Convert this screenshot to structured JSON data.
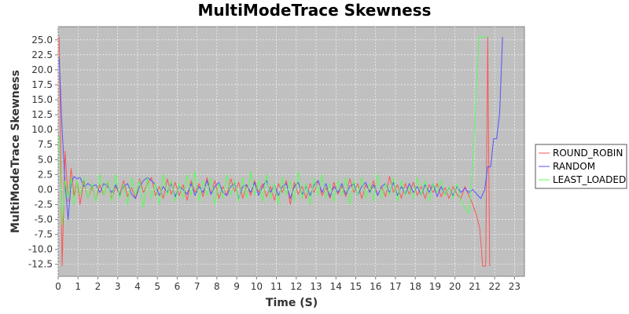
{
  "chart_data": {
    "type": "line",
    "title": "MultiModeTrace Skewness",
    "xlabel": "Time (S)",
    "ylabel": "MultiModeTrace Skewness",
    "xlim": [
      0,
      23.5
    ],
    "ylim": [
      -14.5,
      27.2
    ],
    "x_ticks": [
      0,
      1,
      2,
      3,
      4,
      5,
      6,
      7,
      8,
      9,
      10,
      11,
      12,
      13,
      14,
      15,
      16,
      17,
      18,
      19,
      20,
      21,
      22,
      23
    ],
    "y_ticks": [
      -12.5,
      -10.0,
      -7.5,
      -5.0,
      -2.5,
      0.0,
      2.5,
      5.0,
      7.5,
      10.0,
      12.5,
      15.0,
      17.5,
      20.0,
      22.5,
      25.0
    ],
    "grid": true,
    "legend_position": "right",
    "plot_background": "#c0c0c0",
    "series": [
      {
        "name": "ROUND_ROBIN",
        "color": "#ff5555",
        "x": [
          0.05,
          0.2,
          0.35,
          0.5,
          0.65,
          0.8,
          0.95,
          1.1,
          1.3,
          1.5,
          1.7,
          1.9,
          2.1,
          2.3,
          2.5,
          2.7,
          2.9,
          3.1,
          3.3,
          3.5,
          3.7,
          3.9,
          4.1,
          4.3,
          4.5,
          4.7,
          4.9,
          5.1,
          5.3,
          5.5,
          5.7,
          5.9,
          6.1,
          6.3,
          6.5,
          6.7,
          6.9,
          7.1,
          7.3,
          7.5,
          7.7,
          7.9,
          8.1,
          8.3,
          8.5,
          8.7,
          8.9,
          9.1,
          9.3,
          9.5,
          9.7,
          9.9,
          10.1,
          10.3,
          10.5,
          10.7,
          10.9,
          11.1,
          11.3,
          11.5,
          11.7,
          11.9,
          12.1,
          12.3,
          12.5,
          12.7,
          12.9,
          13.1,
          13.3,
          13.5,
          13.7,
          13.9,
          14.1,
          14.3,
          14.5,
          14.7,
          14.9,
          15.1,
          15.3,
          15.5,
          15.7,
          15.9,
          16.1,
          16.3,
          16.5,
          16.7,
          16.9,
          17.1,
          17.3,
          17.5,
          17.7,
          17.9,
          18.1,
          18.3,
          18.5,
          18.7,
          18.9,
          19.1,
          19.3,
          19.5,
          19.7,
          19.9,
          20.1,
          20.3,
          20.5,
          20.7,
          20.9,
          21.1,
          21.25,
          21.4,
          21.55,
          21.65,
          21.75
        ],
        "y": [
          25.5,
          -12.8,
          6.4,
          -2.0,
          3.5,
          -1.0,
          1.5,
          -2.5,
          1.5,
          -1.5,
          0.5,
          -1.8,
          0.8,
          -1.0,
          1.2,
          -1.5,
          0.5,
          -0.8,
          1.5,
          -1.2,
          0.3,
          -1.5,
          1.8,
          -0.5,
          1.0,
          2.0,
          -1.0,
          0.5,
          -1.5,
          1.8,
          -0.8,
          1.2,
          -1.0,
          0.8,
          -1.8,
          1.5,
          -0.5,
          1.0,
          -1.2,
          2.0,
          -0.8,
          1.5,
          -1.5,
          0.5,
          -1.0,
          1.8,
          -0.3,
          1.2,
          -1.5,
          0.8,
          -1.0,
          1.5,
          -0.5,
          1.0,
          -1.2,
          0.5,
          -1.8,
          1.0,
          -0.5,
          1.5,
          -2.5,
          1.2,
          -0.8,
          0.5,
          -1.5,
          1.0,
          -0.5,
          1.5,
          -1.0,
          0.3,
          -1.5,
          1.2,
          -0.8,
          0.5,
          -1.2,
          1.8,
          -0.5,
          1.0,
          -1.5,
          0.8,
          -0.3,
          1.5,
          -1.0,
          0.5,
          -1.2,
          2.2,
          -0.5,
          0.8,
          -1.5,
          1.0,
          -0.8,
          1.2,
          -1.0,
          0.5,
          -1.5,
          0.8,
          -0.5,
          1.0,
          -1.2,
          0.3,
          -1.5,
          0.5,
          -0.8,
          -1.5,
          0.5,
          -1.0,
          -2.5,
          -4.5,
          -6.5,
          -12.8,
          -12.8,
          25.5,
          -12.8
        ]
      },
      {
        "name": "RANDOM",
        "color": "#5555ff",
        "x": [
          0.05,
          0.2,
          0.35,
          0.5,
          0.65,
          0.8,
          0.95,
          1.1,
          1.3,
          1.5,
          1.7,
          1.9,
          2.1,
          2.3,
          2.5,
          2.7,
          2.9,
          3.1,
          3.3,
          3.5,
          3.7,
          3.9,
          4.1,
          4.3,
          4.5,
          4.7,
          4.9,
          5.1,
          5.3,
          5.5,
          5.7,
          5.9,
          6.1,
          6.3,
          6.5,
          6.7,
          6.9,
          7.1,
          7.3,
          7.5,
          7.7,
          7.9,
          8.1,
          8.3,
          8.5,
          8.7,
          8.9,
          9.1,
          9.3,
          9.5,
          9.7,
          9.9,
          10.1,
          10.3,
          10.5,
          10.7,
          10.9,
          11.1,
          11.3,
          11.5,
          11.7,
          11.9,
          12.1,
          12.3,
          12.5,
          12.7,
          12.9,
          13.1,
          13.3,
          13.5,
          13.7,
          13.9,
          14.1,
          14.3,
          14.5,
          14.7,
          14.9,
          15.1,
          15.3,
          15.5,
          15.7,
          15.9,
          16.1,
          16.3,
          16.5,
          16.7,
          16.9,
          17.1,
          17.3,
          17.5,
          17.7,
          17.9,
          18.1,
          18.3,
          18.5,
          18.7,
          18.9,
          19.1,
          19.3,
          19.5,
          19.7,
          19.9,
          20.1,
          20.3,
          20.5,
          20.7,
          20.9,
          21.1,
          21.3,
          21.5,
          21.65,
          21.8,
          21.95,
          22.1,
          22.25,
          22.4
        ],
        "y": [
          22.0,
          10.0,
          1.0,
          -5.0,
          1.0,
          2.2,
          1.8,
          2.0,
          0.5,
          1.0,
          0.5,
          0.8,
          -0.5,
          1.0,
          0.5,
          -0.5,
          0.8,
          -1.0,
          0.5,
          1.0,
          -0.8,
          -1.5,
          0.5,
          1.5,
          2.0,
          1.5,
          0.8,
          -1.0,
          0.5,
          -0.5,
          1.0,
          -1.2,
          0.5,
          0.0,
          -0.8,
          1.0,
          -1.0,
          0.5,
          -0.5,
          1.5,
          -0.8,
          0.5,
          1.2,
          -0.5,
          -1.0,
          0.5,
          1.0,
          -1.5,
          0.5,
          0.8,
          -0.5,
          1.2,
          -1.0,
          0.5,
          1.5,
          -0.5,
          0.8,
          -1.0,
          0.5,
          1.0,
          -1.5,
          0.5,
          1.2,
          -0.8,
          0.5,
          -1.0,
          0.8,
          1.5,
          -0.5,
          1.0,
          -1.2,
          0.5,
          -0.5,
          1.0,
          -0.8,
          0.5,
          1.0,
          -1.0,
          0.5,
          1.2,
          -0.5,
          0.8,
          -1.0,
          0.5,
          1.0,
          -0.5,
          1.2,
          -1.0,
          0.5,
          -0.8,
          1.0,
          -0.5,
          0.5,
          -1.0,
          0.8,
          -0.5,
          1.0,
          -1.2,
          0.5,
          -0.8,
          0.3,
          -1.0,
          0.5,
          -0.5,
          0.2,
          -0.5,
          0.0,
          -0.8,
          -1.5,
          0.0,
          3.8,
          3.8,
          8.5,
          8.5,
          12.8,
          25.5
        ]
      },
      {
        "name": "LEAST_LOADED",
        "color": "#55ff55",
        "x": [
          0.05,
          0.2,
          0.35,
          0.5,
          0.65,
          0.8,
          0.95,
          1.1,
          1.3,
          1.5,
          1.7,
          1.9,
          2.1,
          2.3,
          2.5,
          2.7,
          2.9,
          3.1,
          3.3,
          3.5,
          3.7,
          3.9,
          4.1,
          4.3,
          4.5,
          4.7,
          4.9,
          5.1,
          5.3,
          5.5,
          5.7,
          5.9,
          6.1,
          6.3,
          6.5,
          6.7,
          6.9,
          7.1,
          7.3,
          7.5,
          7.7,
          7.9,
          8.1,
          8.3,
          8.5,
          8.7,
          8.9,
          9.1,
          9.3,
          9.5,
          9.7,
          9.9,
          10.1,
          10.3,
          10.5,
          10.7,
          10.9,
          11.1,
          11.3,
          11.5,
          11.7,
          11.9,
          12.1,
          12.3,
          12.5,
          12.7,
          12.9,
          13.1,
          13.3,
          13.5,
          13.7,
          13.9,
          14.1,
          14.3,
          14.5,
          14.7,
          14.9,
          15.1,
          15.3,
          15.5,
          15.7,
          15.9,
          16.1,
          16.3,
          16.5,
          16.7,
          16.9,
          17.1,
          17.3,
          17.5,
          17.7,
          17.9,
          18.1,
          18.3,
          18.5,
          18.7,
          18.9,
          19.1,
          19.3,
          19.5,
          19.7,
          19.9,
          20.1,
          20.3,
          20.5,
          20.7,
          20.9,
          21.05,
          21.2,
          21.35,
          21.5,
          21.65
        ],
        "y": [
          9.0,
          -6.0,
          1.5,
          -1.5,
          2.0,
          -2.5,
          1.5,
          -1.0,
          2.0,
          -1.5,
          1.0,
          -2.0,
          2.5,
          -1.0,
          1.5,
          -2.0,
          2.5,
          -1.5,
          1.0,
          -2.5,
          2.0,
          -1.0,
          1.5,
          -3.0,
          2.0,
          -1.5,
          1.0,
          -2.5,
          2.5,
          -1.0,
          1.5,
          -2.0,
          1.0,
          -1.5,
          2.5,
          -1.0,
          3.0,
          -2.0,
          1.5,
          -1.0,
          2.0,
          -2.5,
          1.0,
          -1.5,
          2.5,
          -1.0,
          1.5,
          -2.0,
          2.0,
          -1.5,
          3.0,
          -1.0,
          1.5,
          -2.0,
          2.5,
          -1.5,
          1.0,
          -2.5,
          2.0,
          -1.0,
          1.5,
          -2.0,
          3.0,
          -1.5,
          1.0,
          -2.5,
          2.0,
          -1.0,
          2.5,
          -1.5,
          1.0,
          -2.0,
          1.5,
          -1.0,
          2.0,
          -2.5,
          1.5,
          -1.0,
          2.0,
          -1.5,
          1.0,
          -2.0,
          2.5,
          -1.5,
          1.0,
          -1.0,
          2.0,
          -2.0,
          1.5,
          -1.0,
          0.5,
          -1.5,
          2.0,
          -1.0,
          1.5,
          -2.0,
          1.0,
          -0.5,
          1.5,
          -1.0,
          0.5,
          -1.5,
          1.0,
          -2.0,
          -3.0,
          -4.0,
          4.0,
          15.0,
          25.5,
          25.5,
          25.5,
          25.5
        ]
      }
    ]
  }
}
